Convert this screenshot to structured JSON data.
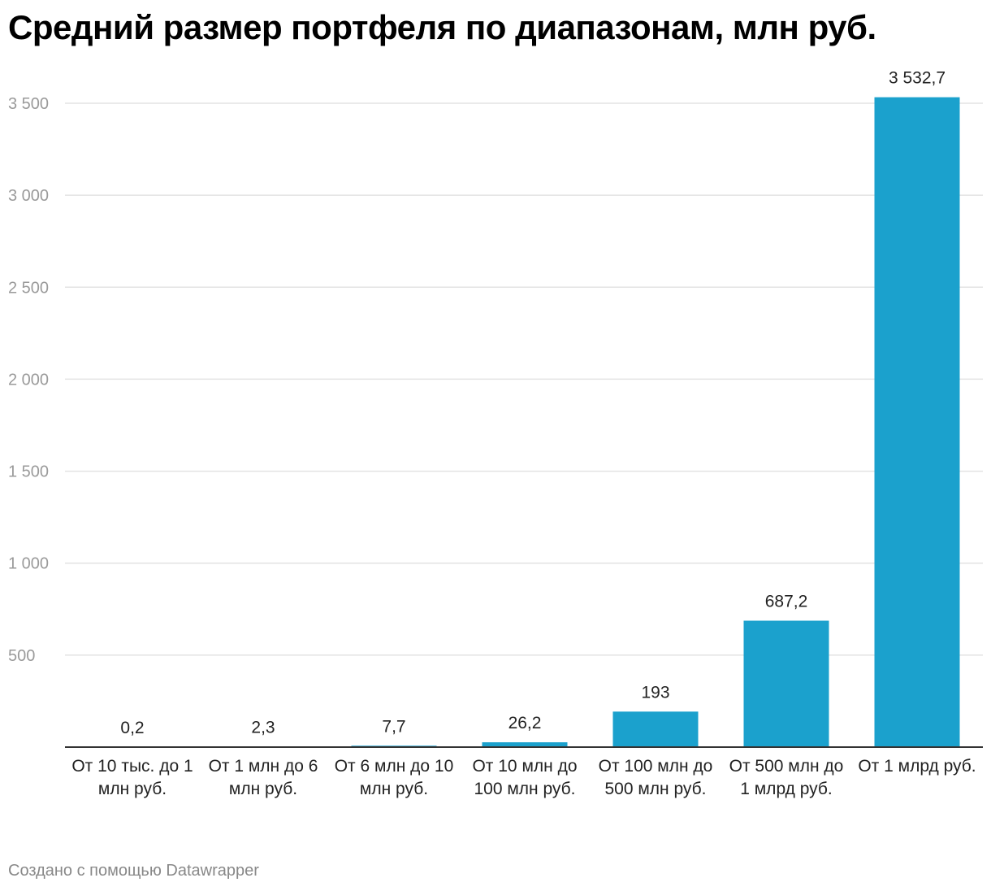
{
  "title": "Средний размер портфеля по диапазонам, млн руб.",
  "footer": "Создано с помощью Datawrapper",
  "chart_data": {
    "type": "bar",
    "title": "Средний размер портфеля по диапазонам, млн руб.",
    "categories": [
      "От 10 тыс. до 1 млн руб.",
      "От 1 млн до 6 млн руб.",
      "От 6 млн до 10 млн руб.",
      "От 10 млн до 100 млн руб.",
      "От 100 млн до 500 млн руб.",
      "От 500 млн до 1 млрд руб.",
      "От 1 млрд руб."
    ],
    "values": [
      0.2,
      2.3,
      7.7,
      26.2,
      193,
      687.2,
      3532.7
    ],
    "value_labels": [
      "0,2",
      "2,3",
      "7,7",
      "26,2",
      "193",
      "687,2",
      "3 532,7"
    ],
    "yticks": [
      500,
      1000,
      1500,
      2000,
      2500,
      3000,
      3500
    ],
    "ytick_labels": [
      "500",
      "1 000",
      "1 500",
      "2 000",
      "2 500",
      "3 000",
      "3 500"
    ],
    "ylim": [
      0,
      3500
    ],
    "xlabel": "",
    "ylabel": "",
    "grid": true,
    "legend": "none",
    "bar_color": "#1ba1cd"
  }
}
